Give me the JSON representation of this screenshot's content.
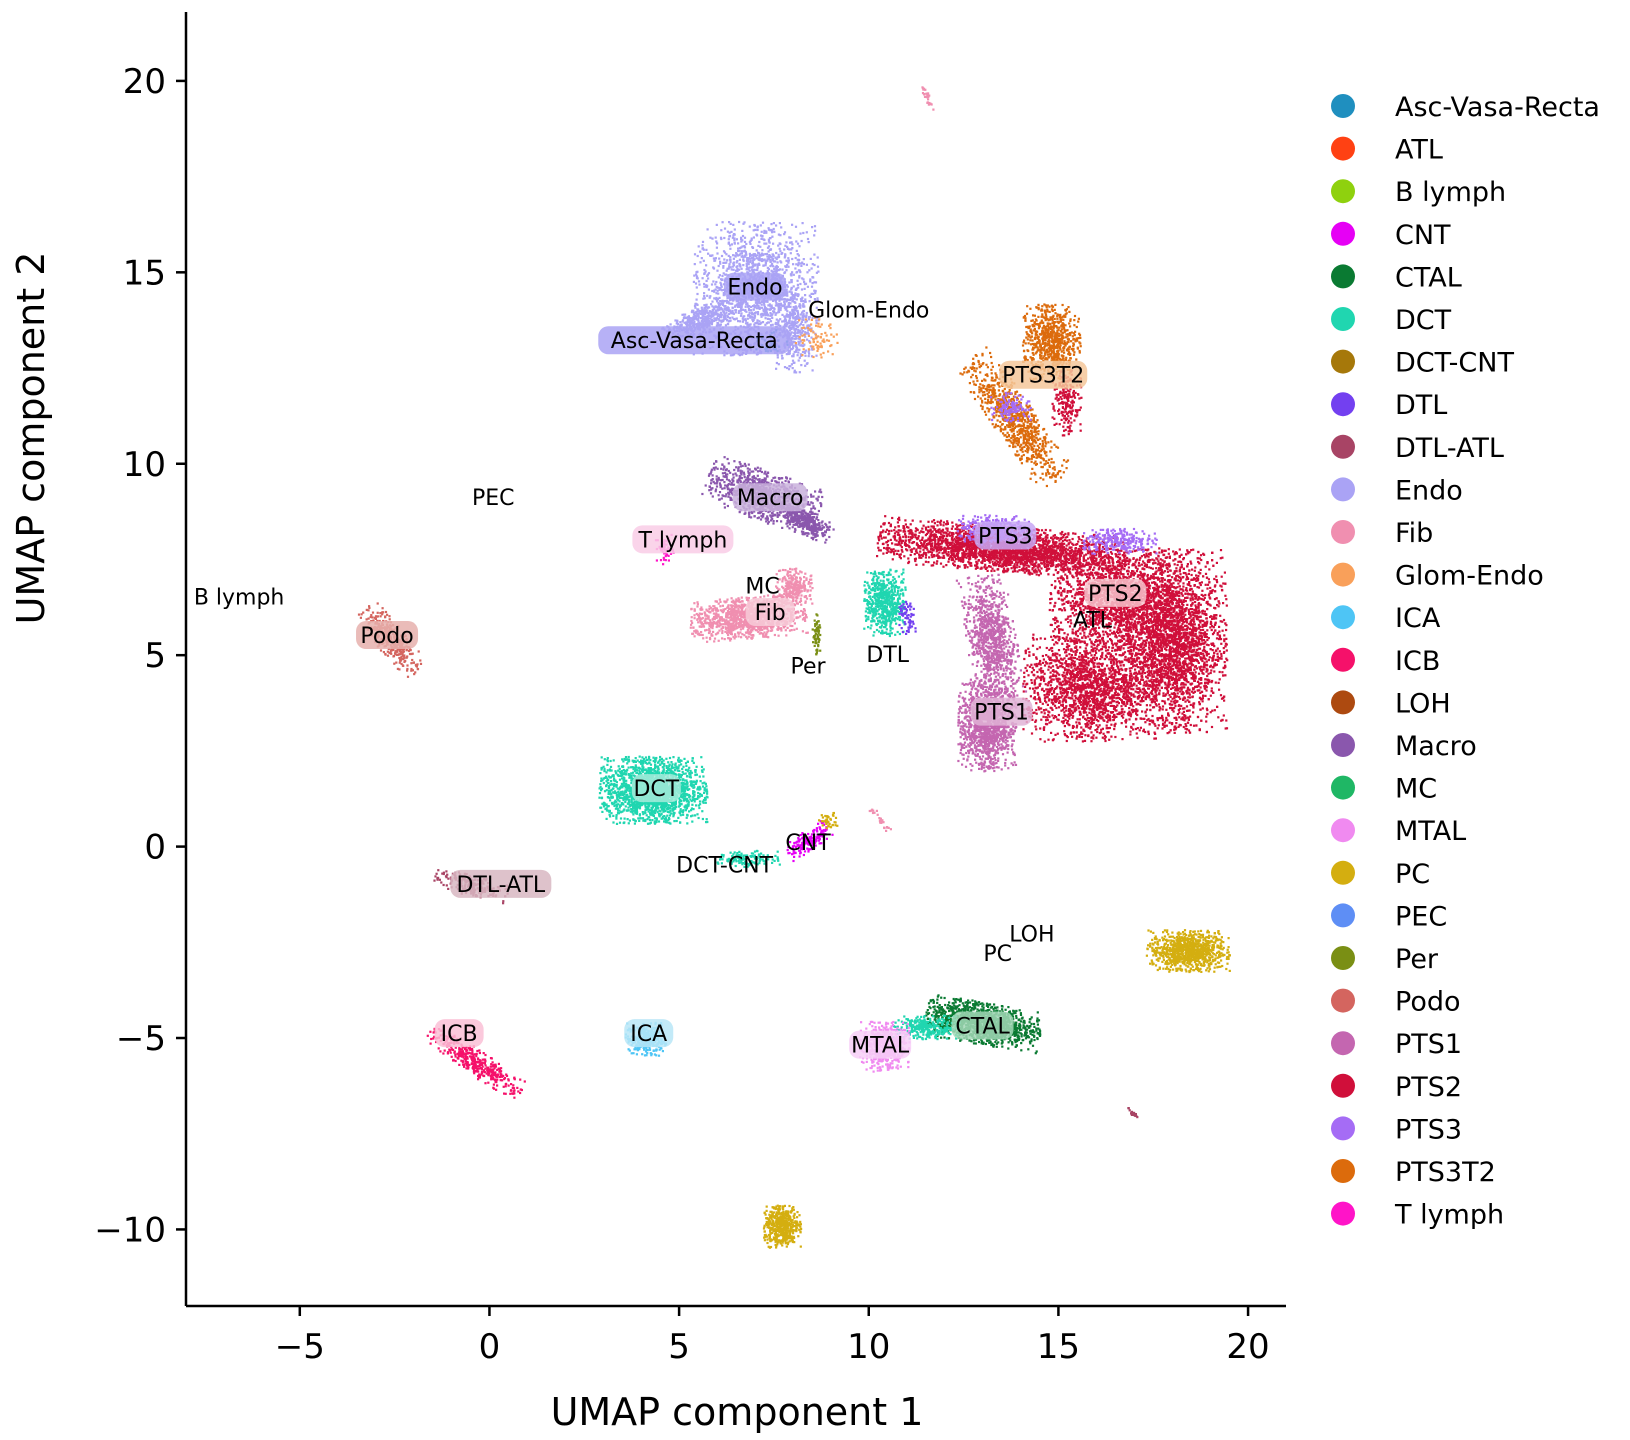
{
  "chart_data": {
    "type": "scatter",
    "title": "",
    "xlabel": "UMAP component 1",
    "ylabel": "UMAP component 2",
    "xlim": [
      -8,
      21
    ],
    "ylim": [
      -12,
      21.8
    ],
    "xticks": [
      -5,
      0,
      5,
      10,
      15,
      20
    ],
    "yticks": [
      -10,
      -5,
      0,
      5,
      10,
      15,
      20
    ],
    "xtick_labels": [
      "−5",
      "0",
      "5",
      "10",
      "15",
      "20"
    ],
    "ytick_labels": [
      "−10",
      "−5",
      "0",
      "5",
      "10",
      "15",
      "20"
    ],
    "grid": false,
    "legend_position": "right",
    "series": [
      {
        "name": "Asc-Vasa-Recta",
        "color": "#1f8fbf"
      },
      {
        "name": "ATL",
        "color": "#ff4113"
      },
      {
        "name": "B lymph",
        "color": "#8fd10e"
      },
      {
        "name": "CNT",
        "color": "#e600f5"
      },
      {
        "name": "CTAL",
        "color": "#0a7a32"
      },
      {
        "name": "DCT",
        "color": "#20d6b0"
      },
      {
        "name": "DCT-CNT",
        "color": "#a6780a"
      },
      {
        "name": "DTL",
        "color": "#7340f0"
      },
      {
        "name": "DTL-ATL",
        "color": "#a84465"
      },
      {
        "name": "Endo",
        "color": "#aaa3f5"
      },
      {
        "name": "Fib",
        "color": "#f08fb0"
      },
      {
        "name": "Glom-Endo",
        "color": "#f9a05a"
      },
      {
        "name": "ICA",
        "color": "#4ec5f5"
      },
      {
        "name": "ICB",
        "color": "#f5116a"
      },
      {
        "name": "LOH",
        "color": "#ad4a10"
      },
      {
        "name": "Macro",
        "color": "#8a57ad"
      },
      {
        "name": "MC",
        "color": "#1fb765"
      },
      {
        "name": "MTAL",
        "color": "#f08af0"
      },
      {
        "name": "PC",
        "color": "#d4ae10"
      },
      {
        "name": "PEC",
        "color": "#5e8ef5"
      },
      {
        "name": "Per",
        "color": "#7a8f14"
      },
      {
        "name": "Podo",
        "color": "#d4655f"
      },
      {
        "name": "PTS1",
        "color": "#c466b0"
      },
      {
        "name": "PTS2",
        "color": "#d00f3a"
      },
      {
        "name": "PTS3",
        "color": "#a56cf5"
      },
      {
        "name": "PTS3T2",
        "color": "#dc6b0c"
      },
      {
        "name": "T lymph",
        "color": "#ff14c8"
      }
    ],
    "clusters": [
      {
        "label": "Endo",
        "color": "#aaa3f5",
        "x": 7.0,
        "y": 14.6,
        "rx": 1.5,
        "ry": 1.6,
        "angle": 0,
        "n": 1600
      },
      {
        "label": "Endo",
        "color": "#aaa3f5",
        "x": 5.6,
        "y": 13.8,
        "rx": 1.0,
        "ry": 0.35,
        "angle": 20,
        "n": 400
      },
      {
        "label": "Endo",
        "color": "#aaa3f5",
        "x": 8.0,
        "y": 13.4,
        "rx": 0.45,
        "ry": 0.9,
        "angle": 0,
        "n": 300
      },
      {
        "label": "Glom-Endo",
        "color": "#f9a05a",
        "x": 8.6,
        "y": 13.3,
        "rx": 0.5,
        "ry": 0.5,
        "angle": 0,
        "n": 80
      },
      {
        "label": "Asc-Vasa-Recta",
        "color": "#1f8fbf",
        "x": 7.4,
        "y": 13.2,
        "rx": 0.4,
        "ry": 0.3,
        "angle": 0,
        "n": 40
      },
      {
        "label": "PTS3T2",
        "color": "#dc6b0c",
        "x": 14.8,
        "y": 13.2,
        "rx": 0.7,
        "ry": 0.9,
        "angle": 0,
        "n": 700
      },
      {
        "label": "PTS3T2",
        "color": "#dc6b0c",
        "x": 13.8,
        "y": 11.2,
        "rx": 0.5,
        "ry": 1.8,
        "angle": 35,
        "n": 800
      },
      {
        "label": "PTS2",
        "color": "#d00f3a",
        "x": 15.2,
        "y": 11.6,
        "rx": 0.35,
        "ry": 0.8,
        "angle": 0,
        "n": 200
      },
      {
        "label": "PTS2",
        "color": "#d00f3a",
        "x": 18.0,
        "y": 5.4,
        "rx": 1.3,
        "ry": 2.2,
        "angle": 0,
        "n": 3200
      },
      {
        "label": "PTS2",
        "color": "#d00f3a",
        "x": 15.8,
        "y": 4.2,
        "rx": 1.6,
        "ry": 1.3,
        "angle": 0,
        "n": 1800
      },
      {
        "label": "PTS2",
        "color": "#d00f3a",
        "x": 13.5,
        "y": 7.8,
        "rx": 3.0,
        "ry": 0.55,
        "angle": -5,
        "n": 2600
      },
      {
        "label": "PTS2",
        "color": "#d00f3a",
        "x": 16.5,
        "y": 6.5,
        "rx": 1.6,
        "ry": 1.2,
        "angle": 0,
        "n": 1600
      },
      {
        "label": "PTS1",
        "color": "#c466b0",
        "x": 13.1,
        "y": 3.2,
        "rx": 0.7,
        "ry": 1.1,
        "angle": 0,
        "n": 1200
      },
      {
        "label": "PTS1",
        "color": "#c466b0",
        "x": 13.2,
        "y": 5.5,
        "rx": 0.6,
        "ry": 1.5,
        "angle": 10,
        "n": 900
      },
      {
        "label": "PTS3",
        "color": "#a56cf5",
        "x": 13.3,
        "y": 8.3,
        "rx": 0.9,
        "ry": 0.35,
        "angle": 0,
        "n": 300
      },
      {
        "label": "PTS3",
        "color": "#a56cf5",
        "x": 16.6,
        "y": 8.0,
        "rx": 0.9,
        "ry": 0.3,
        "angle": 0,
        "n": 260
      },
      {
        "label": "PTS3",
        "color": "#a56cf5",
        "x": 13.7,
        "y": 11.5,
        "rx": 0.5,
        "ry": 0.35,
        "angle": 0,
        "n": 120
      },
      {
        "label": "Macro",
        "color": "#8a57ad",
        "x": 7.2,
        "y": 9.2,
        "rx": 1.4,
        "ry": 0.6,
        "angle": -20,
        "n": 900
      },
      {
        "label": "Macro",
        "color": "#8a57ad",
        "x": 8.3,
        "y": 8.5,
        "rx": 0.7,
        "ry": 0.3,
        "angle": -30,
        "n": 300
      },
      {
        "label": "T lymph",
        "color": "#ff14c8",
        "x": 4.6,
        "y": 7.8,
        "rx": 0.25,
        "ry": 0.4,
        "angle": 0,
        "n": 70
      },
      {
        "label": "Fib",
        "color": "#f08fb0",
        "x": 6.8,
        "y": 6.0,
        "rx": 1.4,
        "ry": 0.5,
        "angle": 5,
        "n": 1100
      },
      {
        "label": "MC",
        "color": "#f08fb0",
        "x": 8.0,
        "y": 6.8,
        "rx": 0.45,
        "ry": 0.45,
        "angle": 0,
        "n": 250
      },
      {
        "label": "Per",
        "color": "#7a8f14",
        "x": 8.6,
        "y": 5.6,
        "rx": 0.1,
        "ry": 0.5,
        "angle": 0,
        "n": 60
      },
      {
        "label": "DTL",
        "color": "#20d6b0",
        "x": 10.4,
        "y": 6.4,
        "rx": 0.5,
        "ry": 0.8,
        "angle": 0,
        "n": 600
      },
      {
        "label": "DTL",
        "color": "#7340f0",
        "x": 11.0,
        "y": 6.0,
        "rx": 0.2,
        "ry": 0.4,
        "angle": 0,
        "n": 60
      },
      {
        "label": "Podo",
        "color": "#d4655f",
        "x": -2.6,
        "y": 5.4,
        "rx": 0.35,
        "ry": 1.0,
        "angle": 40,
        "n": 350
      },
      {
        "label": "DCT",
        "color": "#20d6b0",
        "x": 4.3,
        "y": 1.5,
        "rx": 1.3,
        "ry": 0.8,
        "angle": 0,
        "n": 1800
      },
      {
        "label": "DCT-CNT",
        "color": "#20d6b0",
        "x": 6.8,
        "y": -0.3,
        "rx": 0.8,
        "ry": 0.2,
        "angle": 0,
        "n": 120
      },
      {
        "label": "CNT",
        "color": "#e600f5",
        "x": 8.4,
        "y": 0.2,
        "rx": 0.6,
        "ry": 0.25,
        "angle": 35,
        "n": 180
      },
      {
        "label": "PC",
        "color": "#d4ae10",
        "x": 8.9,
        "y": 0.7,
        "rx": 0.25,
        "ry": 0.2,
        "angle": 0,
        "n": 40
      },
      {
        "label": "DTL-ATL",
        "color": "#a84465",
        "x": -0.5,
        "y": -1.0,
        "rx": 0.9,
        "ry": 0.25,
        "angle": -15,
        "n": 200
      },
      {
        "label": "PC",
        "color": "#d4ae10",
        "x": 18.4,
        "y": -2.7,
        "rx": 1.0,
        "ry": 0.5,
        "angle": 0,
        "n": 900
      },
      {
        "label": "CTAL",
        "color": "#0a7a32",
        "x": 13.0,
        "y": -4.6,
        "rx": 1.4,
        "ry": 0.5,
        "angle": -10,
        "n": 1200
      },
      {
        "label": "CTAL",
        "color": "#20d6b0",
        "x": 11.5,
        "y": -4.7,
        "rx": 0.8,
        "ry": 0.3,
        "angle": 0,
        "n": 300
      },
      {
        "label": "MTAL",
        "color": "#f08af0",
        "x": 10.4,
        "y": -5.2,
        "rx": 0.6,
        "ry": 0.6,
        "angle": 0,
        "n": 500
      },
      {
        "label": "ICA",
        "color": "#4ec5f5",
        "x": 4.1,
        "y": -5.0,
        "rx": 0.5,
        "ry": 0.4,
        "angle": 0,
        "n": 300
      },
      {
        "label": "ICB",
        "color": "#f5116a",
        "x": -0.4,
        "y": -5.6,
        "rx": 0.3,
        "ry": 1.3,
        "angle": 55,
        "n": 400
      },
      {
        "label": "PC",
        "color": "#d4ae10",
        "x": 7.7,
        "y": -9.9,
        "rx": 0.45,
        "ry": 0.5,
        "angle": 0,
        "n": 500
      },
      {
        "label": "Fib",
        "color": "#f08fb0",
        "x": 11.5,
        "y": 19.6,
        "rx": 0.08,
        "ry": 0.4,
        "angle": 20,
        "n": 30
      },
      {
        "label": "Fib",
        "color": "#f08fb0",
        "x": 10.3,
        "y": 0.7,
        "rx": 0.08,
        "ry": 0.4,
        "angle": 40,
        "n": 25
      },
      {
        "label": "DTL-ATL",
        "color": "#a84465",
        "x": 17.0,
        "y": -7.0,
        "rx": 0.06,
        "ry": 0.25,
        "angle": 40,
        "n": 15
      }
    ],
    "annotations": [
      {
        "text": "Endo",
        "x": 7.0,
        "y": 14.6,
        "bg": "#aaa3f5"
      },
      {
        "text": "Glom-Endo",
        "x": 10.0,
        "y": 14.0,
        "bg": ""
      },
      {
        "text": "Asc-Vasa-Recta",
        "x": 5.4,
        "y": 13.2,
        "bg": "#aaa3f5"
      },
      {
        "text": "PTS3T2",
        "x": 14.6,
        "y": 12.3,
        "bg": "#f5c79a"
      },
      {
        "text": "PEC",
        "x": 0.1,
        "y": 9.1,
        "bg": ""
      },
      {
        "text": "Macro",
        "x": 7.4,
        "y": 9.1,
        "bg": "#c9b2dc"
      },
      {
        "text": "PTS3",
        "x": 13.6,
        "y": 8.1,
        "bg": "#c7a6f5"
      },
      {
        "text": "T lymph",
        "x": 5.1,
        "y": 8.0,
        "bg": "#f9cce6"
      },
      {
        "text": "B lymph",
        "x": -6.6,
        "y": 6.5,
        "bg": ""
      },
      {
        "text": "MC",
        "x": 7.2,
        "y": 6.8,
        "bg": ""
      },
      {
        "text": "PTS2",
        "x": 16.5,
        "y": 6.6,
        "bg": "#f7c3cd"
      },
      {
        "text": "Fib",
        "x": 7.4,
        "y": 6.1,
        "bg": "#f7cbd8"
      },
      {
        "text": "ATL",
        "x": 15.9,
        "y": 5.9,
        "bg": ""
      },
      {
        "text": "Podo",
        "x": -2.7,
        "y": 5.5,
        "bg": "#e6b0ad"
      },
      {
        "text": "DTL",
        "x": 10.5,
        "y": 5.0,
        "bg": ""
      },
      {
        "text": "Per",
        "x": 8.4,
        "y": 4.7,
        "bg": ""
      },
      {
        "text": "PTS1",
        "x": 13.5,
        "y": 3.5,
        "bg": "#e1b3d6"
      },
      {
        "text": "DCT",
        "x": 4.4,
        "y": 1.5,
        "bg": "#a6ebdb"
      },
      {
        "text": "CNT",
        "x": 8.4,
        "y": 0.1,
        "bg": ""
      },
      {
        "text": "DCT-CNT",
        "x": 6.2,
        "y": -0.5,
        "bg": ""
      },
      {
        "text": "DTL-ATL",
        "x": 0.3,
        "y": -1.0,
        "bg": "#d8b7c2"
      },
      {
        "text": "LOH",
        "x": 14.3,
        "y": -2.3,
        "bg": ""
      },
      {
        "text": "PC",
        "x": 13.4,
        "y": -2.8,
        "bg": ""
      },
      {
        "text": "CTAL",
        "x": 13.0,
        "y": -4.7,
        "bg": "#a3d8b7"
      },
      {
        "text": "ICA",
        "x": 4.2,
        "y": -4.9,
        "bg": "#b9e6f7"
      },
      {
        "text": "MTAL",
        "x": 10.3,
        "y": -5.2,
        "bg": "#f7cff7"
      },
      {
        "text": "ICB",
        "x": -0.8,
        "y": -4.9,
        "bg": "#fac0d6"
      }
    ]
  }
}
